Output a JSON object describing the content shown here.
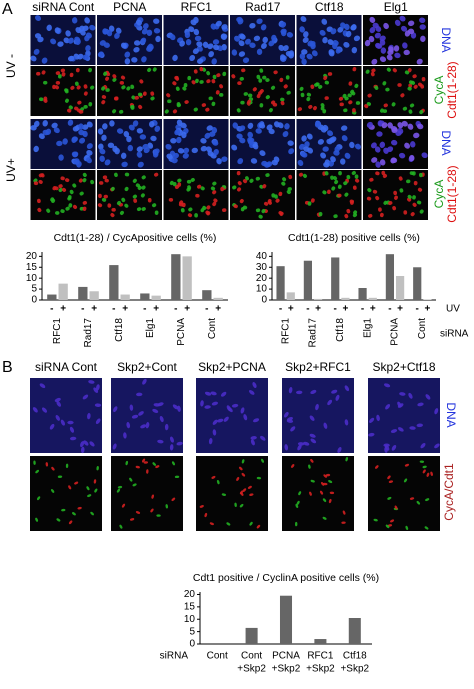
{
  "panel_a": {
    "label": "A",
    "columns": [
      "siRNA Cont",
      "PCNA",
      "RFC1",
      "Rad17",
      "Ctf18",
      "Elg1"
    ],
    "rows": [
      "UV -",
      "UV+"
    ],
    "dna_label": "DNA",
    "cyca_label": "CycA",
    "cdt1_label": "Cdt1(1-28)"
  },
  "panel_b": {
    "label": "B",
    "columns": [
      "siRNA Cont",
      "Skp2+Cont",
      "Skp2+PCNA",
      "Skp2+RFC1",
      "Skp2+Ctf18"
    ],
    "dna_label": "DNA",
    "merge_label": "CycA/Cdt1"
  },
  "chart_data": [
    {
      "type": "bar",
      "title": "Cdt1(1-28) / CycApositive cells (%)",
      "categories": [
        "RFC1",
        "Rad17",
        "Ctf18",
        "Elg1",
        "PCNA",
        "Cont"
      ],
      "series": [
        {
          "name": "-",
          "color": "#666666",
          "values": [
            2.5,
            6,
            16,
            3,
            21,
            4.5
          ]
        },
        {
          "name": "+",
          "color": "#c0c0c0",
          "values": [
            7.5,
            4,
            2.5,
            2,
            20,
            1
          ]
        }
      ],
      "ylim": [
        0,
        22
      ],
      "yticks": [
        0,
        5,
        10,
        15,
        20
      ]
    },
    {
      "type": "bar",
      "title": "Cdt1(1-28) positive cells (%)",
      "categories": [
        "RFC1",
        "Rad17",
        "Ctf18",
        "Elg1",
        "PCNA",
        "Cont"
      ],
      "series": [
        {
          "name": "-",
          "color": "#666666",
          "values": [
            31,
            36,
            39,
            11,
            42,
            30
          ]
        },
        {
          "name": "+",
          "color": "#c0c0c0",
          "values": [
            7,
            1,
            2,
            2,
            22,
            0.5
          ]
        }
      ],
      "ylim": [
        0,
        44
      ],
      "yticks": [
        0,
        10,
        20,
        30,
        40
      ],
      "series_label": "UV",
      "x_label": "siRNA"
    },
    {
      "type": "bar",
      "title": "Cdt1 positive / CyclinA positive cells (%)",
      "categories": [
        [
          "Cont"
        ],
        [
          "Cont",
          "+Skp2"
        ],
        [
          "PCNA",
          "+Skp2"
        ],
        [
          "RFC1",
          "+Skp2"
        ],
        [
          "Ctf18",
          "+Skp2"
        ]
      ],
      "values": [
        0,
        6.5,
        19.5,
        2,
        10.5
      ],
      "color": "#666666",
      "ylim": [
        0,
        21
      ],
      "yticks": [
        0,
        5,
        10,
        15,
        20
      ],
      "x_label": "siRNA"
    }
  ]
}
